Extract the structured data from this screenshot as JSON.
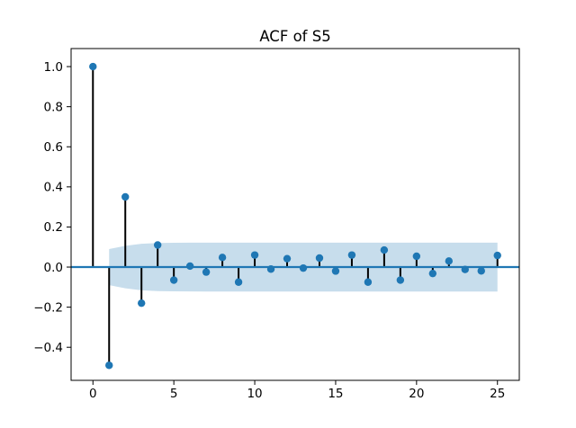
{
  "figure": {
    "background": "#ffffff"
  },
  "chart_data": {
    "type": "stem",
    "title": "ACF of S5",
    "xlabel": "",
    "ylabel": "",
    "x": [
      0,
      1,
      2,
      3,
      4,
      5,
      6,
      7,
      8,
      9,
      10,
      11,
      12,
      13,
      14,
      15,
      16,
      17,
      18,
      19,
      20,
      21,
      22,
      23,
      24,
      25
    ],
    "values": [
      1.0,
      -0.49,
      0.35,
      -0.18,
      0.11,
      -0.065,
      0.005,
      -0.025,
      0.048,
      -0.075,
      0.06,
      -0.01,
      0.042,
      -0.005,
      0.045,
      -0.02,
      0.06,
      -0.075,
      0.085,
      -0.065,
      0.054,
      -0.032,
      0.03,
      -0.012,
      -0.019,
      0.058
    ],
    "confidence_band": {
      "lags": [
        1,
        2,
        3,
        4,
        5,
        6,
        7,
        8,
        9,
        10,
        11,
        12,
        13,
        14,
        15,
        16,
        17,
        18,
        19,
        20,
        21,
        22,
        23,
        24,
        25
      ],
      "half_width": [
        0.09,
        0.106,
        0.116,
        0.12,
        0.121,
        0.1215,
        0.122,
        0.122,
        0.122,
        0.122,
        0.122,
        0.122,
        0.122,
        0.122,
        0.122,
        0.122,
        0.122,
        0.122,
        0.122,
        0.122,
        0.122,
        0.122,
        0.122,
        0.122,
        0.122
      ],
      "centered_at": 0
    },
    "xticks": {
      "values": [
        0,
        5,
        10,
        15,
        20,
        25
      ],
      "labels": [
        "0",
        "5",
        "10",
        "15",
        "20",
        "25"
      ]
    },
    "yticks": {
      "values": [
        1.0,
        0.8,
        0.6,
        0.4,
        0.2,
        0.0,
        -0.2,
        -0.4
      ],
      "labels": [
        "1.0",
        "0.8",
        "0.6",
        "0.4",
        "0.2",
        "0.0",
        "−0.2",
        "−0.4"
      ]
    },
    "xlim": [
      -1.35,
      26.35
    ],
    "ylim": [
      -0.565,
      1.09
    ],
    "grid": false,
    "legend": null,
    "colors": {
      "marker": "#1f77b4",
      "zero_line": "#1f77b4",
      "stem": "#000000",
      "band": "#1f77b4",
      "band_alpha": 0.25,
      "spine": "#000000",
      "tick": "#000000"
    }
  }
}
